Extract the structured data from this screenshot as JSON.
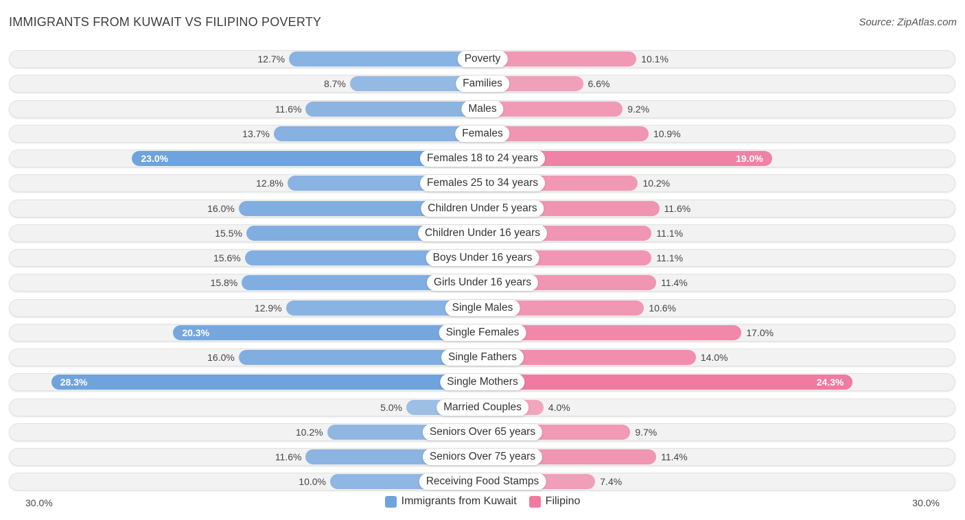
{
  "chart_data": {
    "type": "bar",
    "orientation": "horizontal-diverging",
    "title": "IMMIGRANTS FROM KUWAIT VS FILIPINO POVERTY",
    "source": "Source: ZipAtlas.com",
    "categories": [
      "Poverty",
      "Families",
      "Males",
      "Females",
      "Females 18 to 24 years",
      "Females 25 to 34 years",
      "Children Under 5 years",
      "Children Under 16 years",
      "Boys Under 16 years",
      "Girls Under 16 years",
      "Single Males",
      "Single Females",
      "Single Fathers",
      "Single Mothers",
      "Married Couples",
      "Seniors Over 65 years",
      "Seniors Over 75 years",
      "Receiving Food Stamps"
    ],
    "series": [
      {
        "name": "Immigrants from Kuwait",
        "color": "#6fa3dd",
        "values": [
          12.7,
          8.7,
          11.6,
          13.7,
          23.0,
          12.8,
          16.0,
          15.5,
          15.6,
          15.8,
          12.9,
          20.3,
          16.0,
          28.3,
          5.0,
          10.2,
          11.6,
          10.0
        ],
        "labels": [
          "12.7%",
          "8.7%",
          "11.6%",
          "13.7%",
          "23.0%",
          "12.8%",
          "16.0%",
          "15.5%",
          "15.6%",
          "15.8%",
          "12.9%",
          "20.3%",
          "16.0%",
          "28.3%",
          "5.0%",
          "10.2%",
          "11.6%",
          "10.0%"
        ]
      },
      {
        "name": "Filipino",
        "color": "#f07aa0",
        "values": [
          10.1,
          6.6,
          9.2,
          10.9,
          19.0,
          10.2,
          11.6,
          11.1,
          11.1,
          11.4,
          10.6,
          17.0,
          14.0,
          24.3,
          4.0,
          9.7,
          11.4,
          7.4
        ],
        "labels": [
          "10.1%",
          "6.6%",
          "9.2%",
          "10.9%",
          "19.0%",
          "10.2%",
          "11.6%",
          "11.1%",
          "11.1%",
          "11.4%",
          "10.6%",
          "17.0%",
          "14.0%",
          "24.3%",
          "4.0%",
          "9.7%",
          "11.4%",
          "7.4%"
        ]
      }
    ],
    "xlim": [
      -30,
      30
    ],
    "axis_left_label": "30.0%",
    "axis_right_label": "30.0%",
    "legend_position": "bottom-center"
  }
}
